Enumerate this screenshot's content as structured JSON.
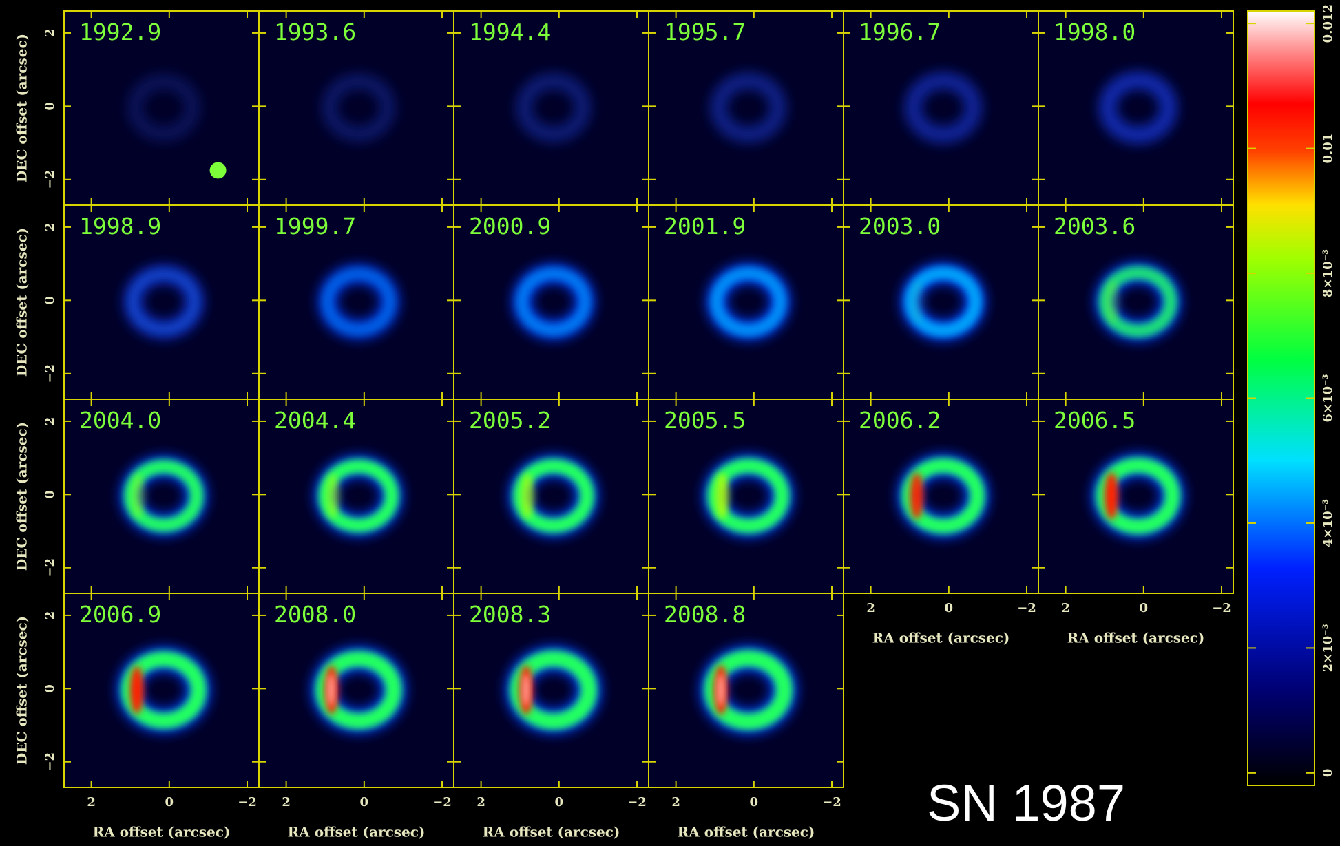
{
  "chart_data": {
    "type": "image-grid",
    "title": "SN 1987",
    "panels": [
      "1992.9",
      "1993.6",
      "1994.4",
      "1995.7",
      "1996.7",
      "1998.0",
      "1998.9",
      "1999.7",
      "2000.9",
      "2001.9",
      "2003.0",
      "2003.6",
      "2004.0",
      "2004.4",
      "2005.2",
      "2005.5",
      "2006.2",
      "2006.5",
      "2006.9",
      "2008.0",
      "2008.3",
      "2008.8"
    ],
    "xlabel": "RA offset (arcsec)",
    "ylabel": "DEC offset (arcsec)",
    "xlim": [
      2.7,
      -2.3
    ],
    "ylim": [
      -2.7,
      2.6
    ],
    "xticks": [
      2,
      0,
      {
        "value": -2,
        "label": "−2"
      }
    ],
    "yticks": [
      {
        "value": -2,
        "label": "−2"
      },
      0,
      2
    ],
    "clim": [
      -0.0002,
      0.0122
    ],
    "cticks": [
      0,
      {
        "value": 0.002,
        "label": "2×10⁻³"
      },
      {
        "value": 0.004,
        "label": "4×10⁻³"
      },
      {
        "value": 0.006,
        "label": "6×10⁻³"
      },
      {
        "value": 0.008,
        "label": "8×10⁻³"
      },
      0.01,
      0.012
    ]
  }
}
